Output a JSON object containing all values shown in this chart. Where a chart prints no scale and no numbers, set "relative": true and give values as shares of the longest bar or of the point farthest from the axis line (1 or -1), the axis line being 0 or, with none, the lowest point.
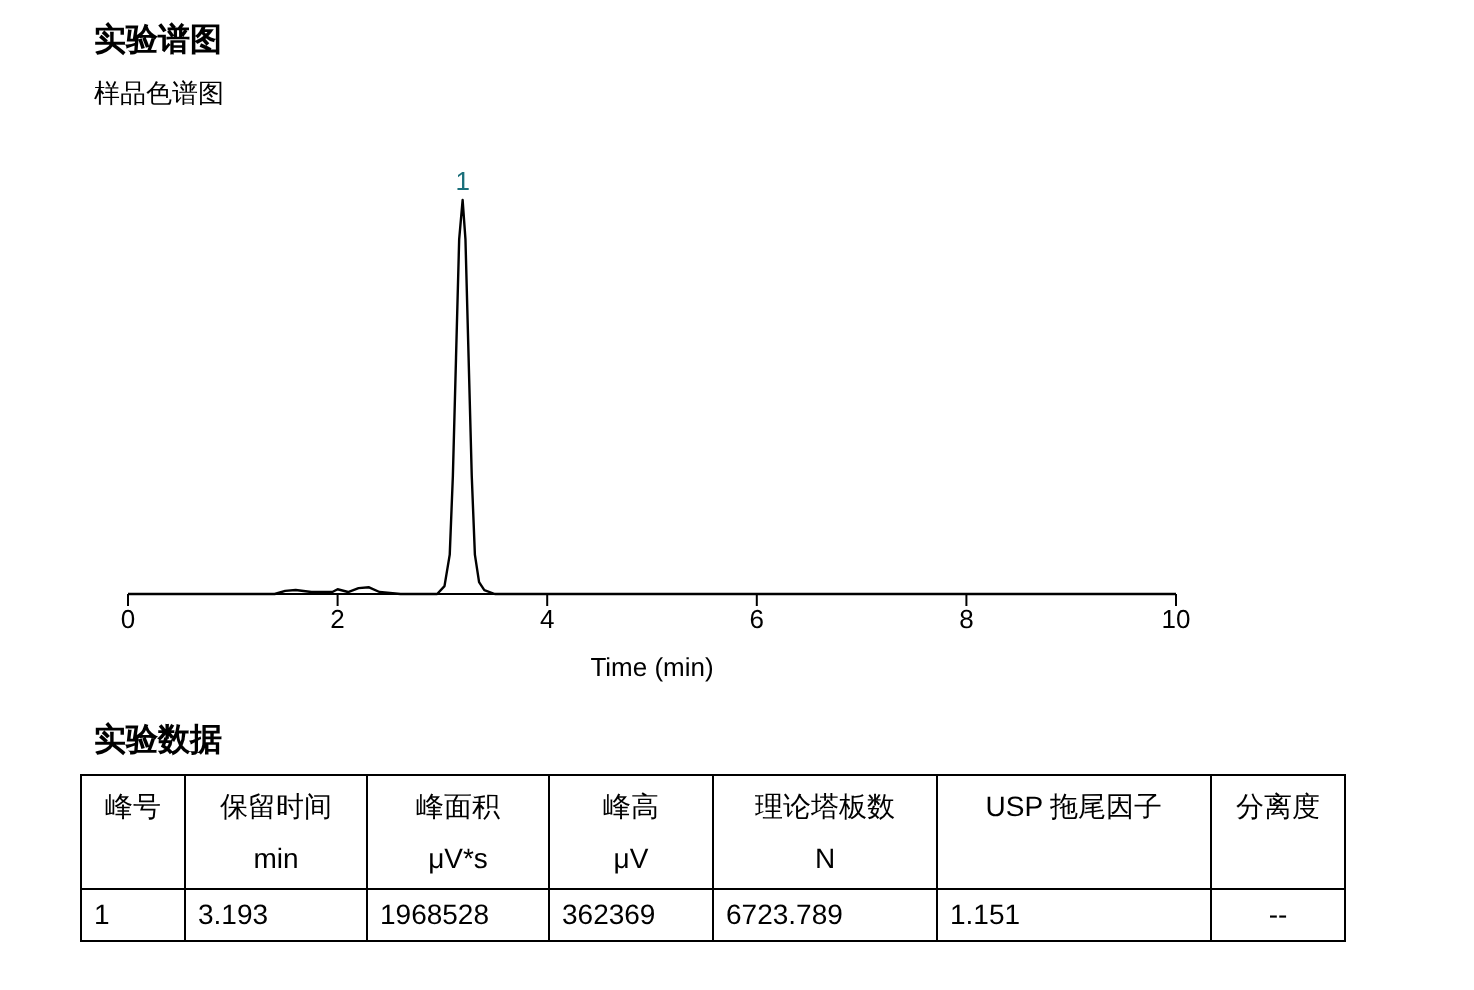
{
  "chart_data": {
    "type": "line",
    "title": "实验谱图",
    "subtitle": "样品色谱图",
    "xlabel": "Time (min)",
    "relative": true,
    "xlim": [
      0,
      10
    ],
    "xticks": [
      0,
      2,
      4,
      6,
      8,
      10
    ],
    "marker": "none",
    "line_style": "solid",
    "series": [
      {
        "color": "#000000",
        "x": [
          0,
          1.4,
          1.5,
          1.6,
          1.75,
          1.95,
          2.0,
          2.1,
          2.2,
          2.3,
          2.4,
          2.6,
          2.95,
          3.02,
          3.07,
          3.1,
          3.13,
          3.16,
          3.193,
          3.22,
          3.25,
          3.28,
          3.31,
          3.35,
          3.4,
          3.5,
          10
        ],
        "values": [
          0,
          0,
          0.008,
          0.01,
          0.005,
          0.005,
          0.012,
          0.005,
          0.015,
          0.017,
          0.005,
          0,
          0,
          0.02,
          0.1,
          0.3,
          0.6,
          0.9,
          1,
          0.9,
          0.6,
          0.3,
          0.1,
          0.03,
          0.01,
          0,
          0
        ]
      }
    ],
    "annotations": [
      {
        "text": "1",
        "x": 3.193,
        "y": 1
      },
      "实验数据",
      "峰号",
      "保留时间\nmin",
      "峰面积\nμV*s",
      "峰高\nμV",
      "理论塔板数\nN",
      "USP 拖尾因子",
      "分离度",
      "1",
      "3.193",
      "1968528",
      "362369",
      "6723.789",
      "1.151",
      "--"
    ]
  }
}
